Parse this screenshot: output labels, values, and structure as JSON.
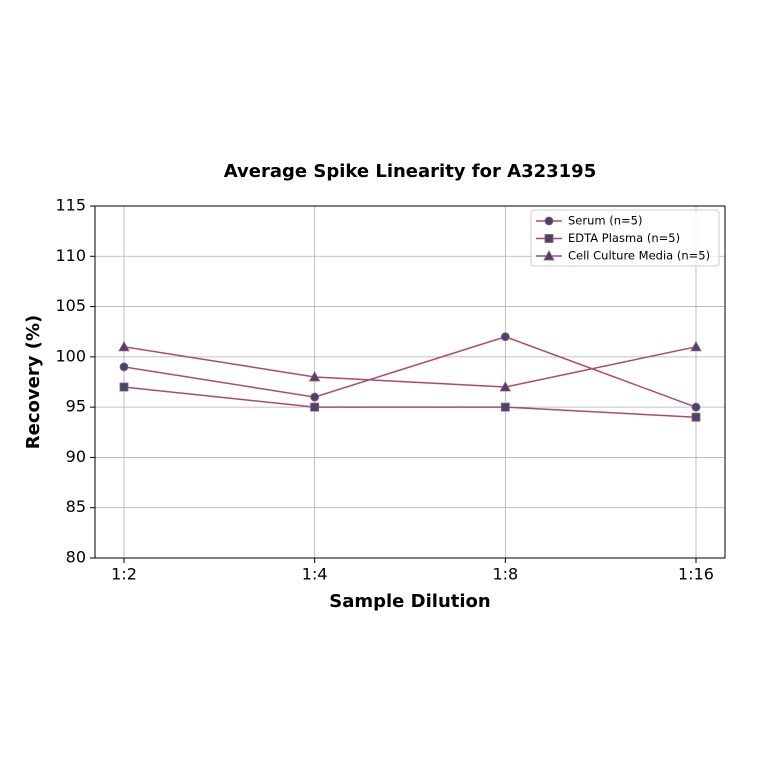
{
  "chart_data": {
    "type": "line",
    "title": "Average Spike Linearity for A323195",
    "x_label": "Sample Dilution",
    "y_label": "Recovery (%)",
    "categories": [
      "1:2",
      "1:4",
      "1:8",
      "1:16"
    ],
    "series": [
      {
        "name": "Serum (n=5)",
        "color": "#b0486e",
        "marker_color": "#3b4a6e",
        "marker": "circle",
        "values": [
          99,
          96,
          102,
          95
        ]
      },
      {
        "name": "EDTA Plasma (n=5)",
        "color": "#b0486e",
        "marker_color": "#3b4a6e",
        "marker": "square",
        "values": [
          97,
          95,
          95,
          94
        ]
      },
      {
        "name": "Cell Culture Media (n=5)",
        "color": "#b0486e",
        "marker_color": "#3b4a6e",
        "marker": "triangle",
        "values": [
          101,
          98,
          97,
          101
        ]
      }
    ],
    "ylim": [
      80,
      115
    ],
    "yticks": [
      80,
      85,
      90,
      95,
      100,
      105,
      110,
      115
    ],
    "grid": true,
    "legend": "upper-right"
  }
}
